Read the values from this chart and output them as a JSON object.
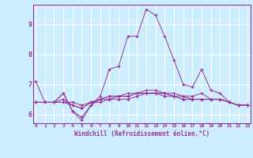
{
  "xlabel": "Windchill (Refroidissement éolien,°C)",
  "ylabel": "",
  "bg_color": "#cceeff",
  "grid_color": "#ffffff",
  "line_color": "#993399",
  "x_ticks": [
    0,
    1,
    2,
    3,
    4,
    5,
    6,
    7,
    8,
    9,
    10,
    11,
    12,
    13,
    14,
    15,
    16,
    17,
    18,
    19,
    20,
    21,
    22,
    23
  ],
  "y_ticks": [
    6,
    7,
    8,
    9
  ],
  "ylim": [
    5.7,
    9.65
  ],
  "xlim": [
    -0.3,
    23.3
  ],
  "series": [
    [
      7.1,
      6.4,
      6.4,
      6.7,
      6.1,
      5.8,
      6.3,
      6.6,
      7.5,
      7.6,
      8.6,
      8.6,
      9.5,
      9.3,
      8.6,
      7.8,
      7.0,
      6.9,
      7.5,
      6.8,
      6.7,
      6.4,
      6.3,
      6.3
    ],
    [
      6.4,
      6.4,
      6.4,
      6.4,
      6.3,
      6.2,
      6.4,
      6.4,
      6.5,
      6.5,
      6.5,
      6.6,
      6.7,
      6.7,
      6.6,
      6.6,
      6.5,
      6.5,
      6.5,
      6.5,
      6.5,
      6.4,
      6.3,
      6.3
    ],
    [
      6.4,
      6.4,
      6.4,
      6.7,
      6.1,
      5.9,
      6.3,
      6.5,
      6.6,
      6.6,
      6.7,
      6.7,
      6.8,
      6.8,
      6.7,
      6.7,
      6.6,
      6.6,
      6.7,
      6.5,
      6.5,
      6.4,
      6.3,
      6.3
    ],
    [
      6.4,
      6.4,
      6.4,
      6.4,
      6.4,
      6.3,
      6.4,
      6.5,
      6.6,
      6.6,
      6.6,
      6.7,
      6.7,
      6.7,
      6.7,
      6.6,
      6.6,
      6.5,
      6.5,
      6.5,
      6.5,
      6.4,
      6.3,
      6.3
    ],
    [
      6.4,
      6.4,
      6.4,
      6.5,
      6.3,
      6.2,
      6.4,
      6.5,
      6.5,
      6.6,
      6.6,
      6.7,
      6.7,
      6.7,
      6.7,
      6.6,
      6.5,
      6.5,
      6.5,
      6.5,
      6.5,
      6.4,
      6.3,
      6.3
    ]
  ]
}
